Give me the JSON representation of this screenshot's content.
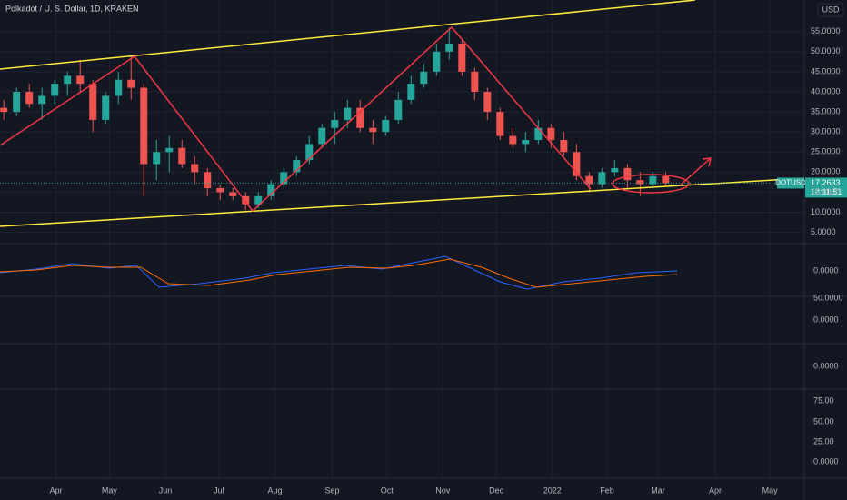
{
  "chart_data": {
    "type": "candlestick",
    "title": "Polkadot / U. S. Dollar, 1D, KRAKEN",
    "currency": "USD",
    "symbol": "DOTUSD",
    "last_price": 17.2633,
    "countdown": "18:11:51",
    "up_color": "#26a69a",
    "down_color": "#ef5350",
    "categories": [
      null,
      null,
      null,
      null,
      null,
      null,
      null,
      null,
      null,
      null,
      null,
      null,
      null,
      null,
      null,
      null,
      null,
      null,
      null,
      null,
      null,
      null,
      null,
      null,
      null,
      null,
      null,
      null,
      null,
      null,
      null,
      null,
      null,
      null,
      null,
      null,
      null,
      null,
      null,
      null,
      null,
      null,
      null,
      null,
      null,
      null,
      null,
      null,
      null,
      null,
      null,
      null,
      null
    ],
    "open": [
      36,
      35,
      40,
      37,
      39,
      42,
      44,
      42,
      33,
      39,
      43,
      41,
      22,
      25,
      26,
      22,
      20,
      16,
      15,
      14,
      12,
      14,
      17,
      20,
      23,
      27,
      31,
      33,
      36,
      31,
      30,
      33,
      38,
      42,
      45,
      50,
      52,
      45,
      40,
      35,
      29,
      27,
      28,
      31,
      28,
      25,
      19,
      17,
      20,
      21,
      18,
      17,
      19
    ],
    "high": [
      38,
      41,
      42,
      41,
      43,
      45,
      48,
      43,
      40,
      45,
      49,
      42,
      28,
      29,
      28,
      24,
      21,
      17,
      16,
      15,
      15,
      18,
      21,
      24,
      29,
      32,
      35,
      38,
      38,
      33,
      34,
      40,
      44,
      47,
      52,
      56,
      53,
      46,
      41,
      36,
      31,
      30,
      33,
      32,
      30,
      27,
      20,
      21,
      23,
      22,
      20,
      20,
      20
    ],
    "low": [
      33,
      34,
      36,
      33,
      37,
      39,
      40,
      30,
      32,
      37,
      38,
      14,
      18,
      20,
      21,
      17,
      14,
      13,
      13,
      10.5,
      11,
      13,
      16,
      19,
      22,
      26,
      27,
      31,
      30,
      27,
      29,
      32,
      37,
      41,
      44,
      48,
      44,
      38,
      33,
      28,
      26,
      25,
      27,
      26,
      24,
      18,
      15,
      16,
      19,
      16,
      14,
      16,
      16.5
    ],
    "close": [
      35,
      40,
      37,
      39,
      42,
      44,
      42,
      33,
      39,
      43,
      41,
      22,
      25,
      26,
      22,
      20,
      16,
      15,
      14,
      12,
      14,
      17,
      20,
      23,
      27,
      31,
      33,
      36,
      31,
      30,
      33,
      38,
      42,
      45,
      50,
      52,
      45,
      40,
      35,
      29,
      27,
      28,
      31,
      28,
      25,
      19,
      17,
      20,
      21,
      18,
      17,
      19,
      17.2633
    ],
    "xlim": [
      -0.3,
      62.9
    ],
    "xticks": [
      {
        "value": 4.1,
        "label": "Apr"
      },
      {
        "value": 8.3,
        "label": "May"
      },
      {
        "value": 12.7,
        "label": "Jun"
      },
      {
        "value": 16.9,
        "label": "Jul"
      },
      {
        "value": 21.3,
        "label": "Aug"
      },
      {
        "value": 25.8,
        "label": "Sep"
      },
      {
        "value": 30.1,
        "label": "Oct"
      },
      {
        "value": 34.5,
        "label": "Nov"
      },
      {
        "value": 38.7,
        "label": "Dec"
      },
      {
        "value": 43.1,
        "label": "2022"
      },
      {
        "value": 47.4,
        "label": "Feb"
      },
      {
        "value": 51.4,
        "label": "Mar"
      },
      {
        "value": 55.9,
        "label": "Apr"
      },
      {
        "value": 60.2,
        "label": "May"
      }
    ],
    "ylim": [
      2.19,
      62.87
    ],
    "yticks": [
      {
        "value": 5,
        "label": "5.0000"
      },
      {
        "value": 10,
        "label": "10.0000"
      },
      {
        "value": 15,
        "label": "15.0000"
      },
      {
        "value": 20,
        "label": "20.0000"
      },
      {
        "value": 25,
        "label": "25.0000"
      },
      {
        "value": 30,
        "label": "30.0000"
      },
      {
        "value": 35,
        "label": "35.0000"
      },
      {
        "value": 40,
        "label": "40.0000"
      },
      {
        "value": 45,
        "label": "45.0000"
      },
      {
        "value": 50,
        "label": "50.0000"
      },
      {
        "value": 55,
        "label": "55.0000"
      }
    ],
    "lower_pane_labels": [
      "0.0000",
      "50.0000",
      "0.0000",
      "0.0000",
      "75.00",
      "50.00",
      "25.00",
      "0.0000"
    ]
  }
}
